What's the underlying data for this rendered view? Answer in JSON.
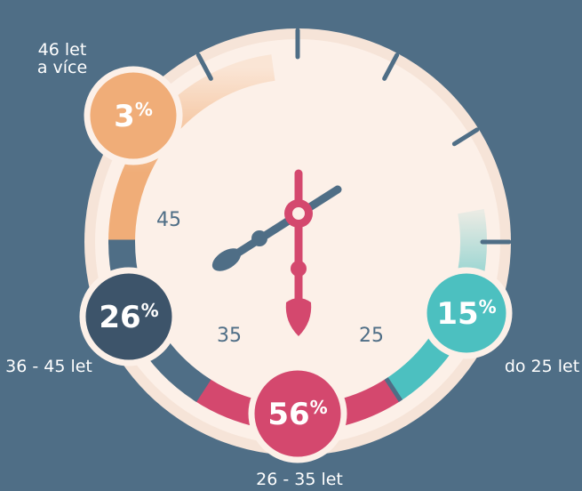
{
  "groups": [
    {
      "number": "3",
      "sign": "%",
      "label_lines": [
        "46 let",
        "a více"
      ]
    },
    {
      "number": "26",
      "sign": "%",
      "label_lines": [
        "36 - 45 let"
      ]
    },
    {
      "number": "56",
      "sign": "%",
      "label_lines": [
        "26 - 35 let"
      ]
    },
    {
      "number": "15",
      "sign": "%",
      "label_lines": [
        "do 25 let"
      ]
    }
  ],
  "dial_numbers": [
    "45",
    "35",
    "25"
  ]
}
